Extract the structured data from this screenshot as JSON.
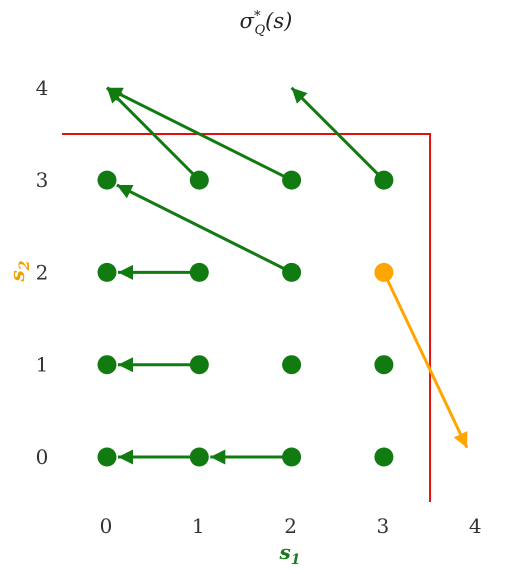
{
  "title": "σ*Q(s)",
  "title_parts": {
    "base": "σ",
    "sup": "*",
    "sub": "Q",
    "arg": "(s)"
  },
  "xlabel": {
    "base": "s",
    "sub": "1",
    "color": "#1b7a1b"
  },
  "ylabel": {
    "base": "s",
    "sub": "2",
    "color": "#f0a000"
  },
  "colors": {
    "green": "#117a11",
    "orange": "#ffa500",
    "boundary": "#e01010"
  },
  "chart_data": {
    "type": "scatter",
    "x_ticks": [
      0,
      1,
      2,
      3,
      4
    ],
    "y_ticks": [
      0,
      1,
      2,
      3,
      4
    ],
    "xlim": [
      -0.6,
      4.2
    ],
    "ylim": [
      -0.5,
      4.3
    ],
    "boundary": [
      [
        -0.5,
        3.5
      ],
      [
        3.5,
        3.5
      ],
      [
        3.5,
        -0.5
      ]
    ],
    "points": [
      {
        "x": 0,
        "y": 0,
        "color": "green"
      },
      {
        "x": 1,
        "y": 0,
        "color": "green"
      },
      {
        "x": 2,
        "y": 0,
        "color": "green"
      },
      {
        "x": 3,
        "y": 0,
        "color": "green"
      },
      {
        "x": 0,
        "y": 1,
        "color": "green"
      },
      {
        "x": 1,
        "y": 1,
        "color": "green"
      },
      {
        "x": 2,
        "y": 1,
        "color": "green"
      },
      {
        "x": 3,
        "y": 1,
        "color": "green"
      },
      {
        "x": 0,
        "y": 2,
        "color": "green"
      },
      {
        "x": 1,
        "y": 2,
        "color": "green"
      },
      {
        "x": 2,
        "y": 2,
        "color": "green"
      },
      {
        "x": 3,
        "y": 2,
        "color": "orange"
      },
      {
        "x": 0,
        "y": 3,
        "color": "green"
      },
      {
        "x": 1,
        "y": 3,
        "color": "green"
      },
      {
        "x": 2,
        "y": 3,
        "color": "green"
      },
      {
        "x": 3,
        "y": 3,
        "color": "green"
      }
    ],
    "arrows": [
      {
        "from": [
          2,
          0
        ],
        "to": [
          1,
          0
        ],
        "color": "green"
      },
      {
        "from": [
          1,
          0
        ],
        "to": [
          0,
          0
        ],
        "color": "green"
      },
      {
        "from": [
          1,
          1
        ],
        "to": [
          0,
          1
        ],
        "color": "green"
      },
      {
        "from": [
          1,
          2
        ],
        "to": [
          0,
          2
        ],
        "color": "green"
      },
      {
        "from": [
          2,
          2
        ],
        "to": [
          0,
          3
        ],
        "color": "green"
      },
      {
        "from": [
          1,
          3
        ],
        "to": [
          0,
          4
        ],
        "color": "green"
      },
      {
        "from": [
          2,
          3
        ],
        "to": [
          0,
          4
        ],
        "color": "green"
      },
      {
        "from": [
          3,
          3
        ],
        "to": [
          2,
          4
        ],
        "color": "green"
      },
      {
        "from": [
          3,
          2
        ],
        "to": [
          3.9,
          0.1
        ],
        "color": "orange"
      }
    ]
  }
}
